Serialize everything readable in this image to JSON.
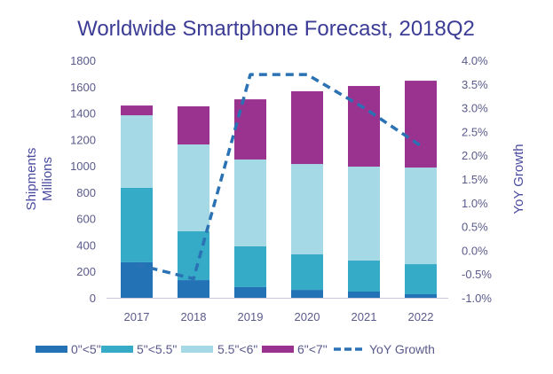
{
  "chart_data": {
    "type": "bar",
    "subtype": "stacked-bar-with-line",
    "title": "Worldwide Smartphone Forecast, 2018Q2",
    "categories": [
      "2017",
      "2018",
      "2019",
      "2020",
      "2021",
      "2022"
    ],
    "xlabel": "",
    "ylabel": [
      "Shipments",
      "Millions"
    ],
    "y2label": "YoY Growth",
    "ylim": [
      0,
      1800
    ],
    "yticks": [
      0,
      200,
      400,
      600,
      800,
      1000,
      1200,
      1400,
      1600,
      1800
    ],
    "ytick_labels": [
      "0",
      "200",
      "400",
      "600",
      "800",
      "1000",
      "1200",
      "1400",
      "1600",
      "1800"
    ],
    "y2lim": [
      -1.0,
      4.0
    ],
    "y2ticks": [
      -1.0,
      -0.5,
      0.0,
      0.5,
      1.0,
      1.5,
      2.0,
      2.5,
      3.0,
      3.5,
      4.0
    ],
    "y2tick_labels": [
      "-1.0%",
      "-0.5%",
      "0.0%",
      "0.5%",
      "1.0%",
      "1.5%",
      "2.0%",
      "2.5%",
      "3.0%",
      "3.5%",
      "4.0%"
    ],
    "grid": false,
    "legend_position": "bottom",
    "series": [
      {
        "name": "0\"<5\"",
        "kind": "bar",
        "color": "#2472b6",
        "values": [
          269,
          134,
          81,
          60,
          47,
          27
        ]
      },
      {
        "name": "5\"<5.5\"",
        "kind": "bar",
        "color": "#36abc8",
        "values": [
          564,
          370,
          309,
          269,
          235,
          228
        ]
      },
      {
        "name": "5.5\"<6\"",
        "kind": "bar",
        "color": "#a5d9e5",
        "values": [
          550,
          658,
          658,
          685,
          712,
          732
        ]
      },
      {
        "name": "6\"<7\"",
        "kind": "bar",
        "color": "#99338f",
        "values": [
          74,
          289,
          456,
          551,
          611,
          658
        ]
      },
      {
        "name": "YoY Growth",
        "kind": "line",
        "axis": "right",
        "style": "dashed",
        "color": "#2a72b4",
        "values": [
          -0.3,
          -0.6,
          3.7,
          3.7,
          3.0,
          2.2
        ]
      }
    ]
  }
}
